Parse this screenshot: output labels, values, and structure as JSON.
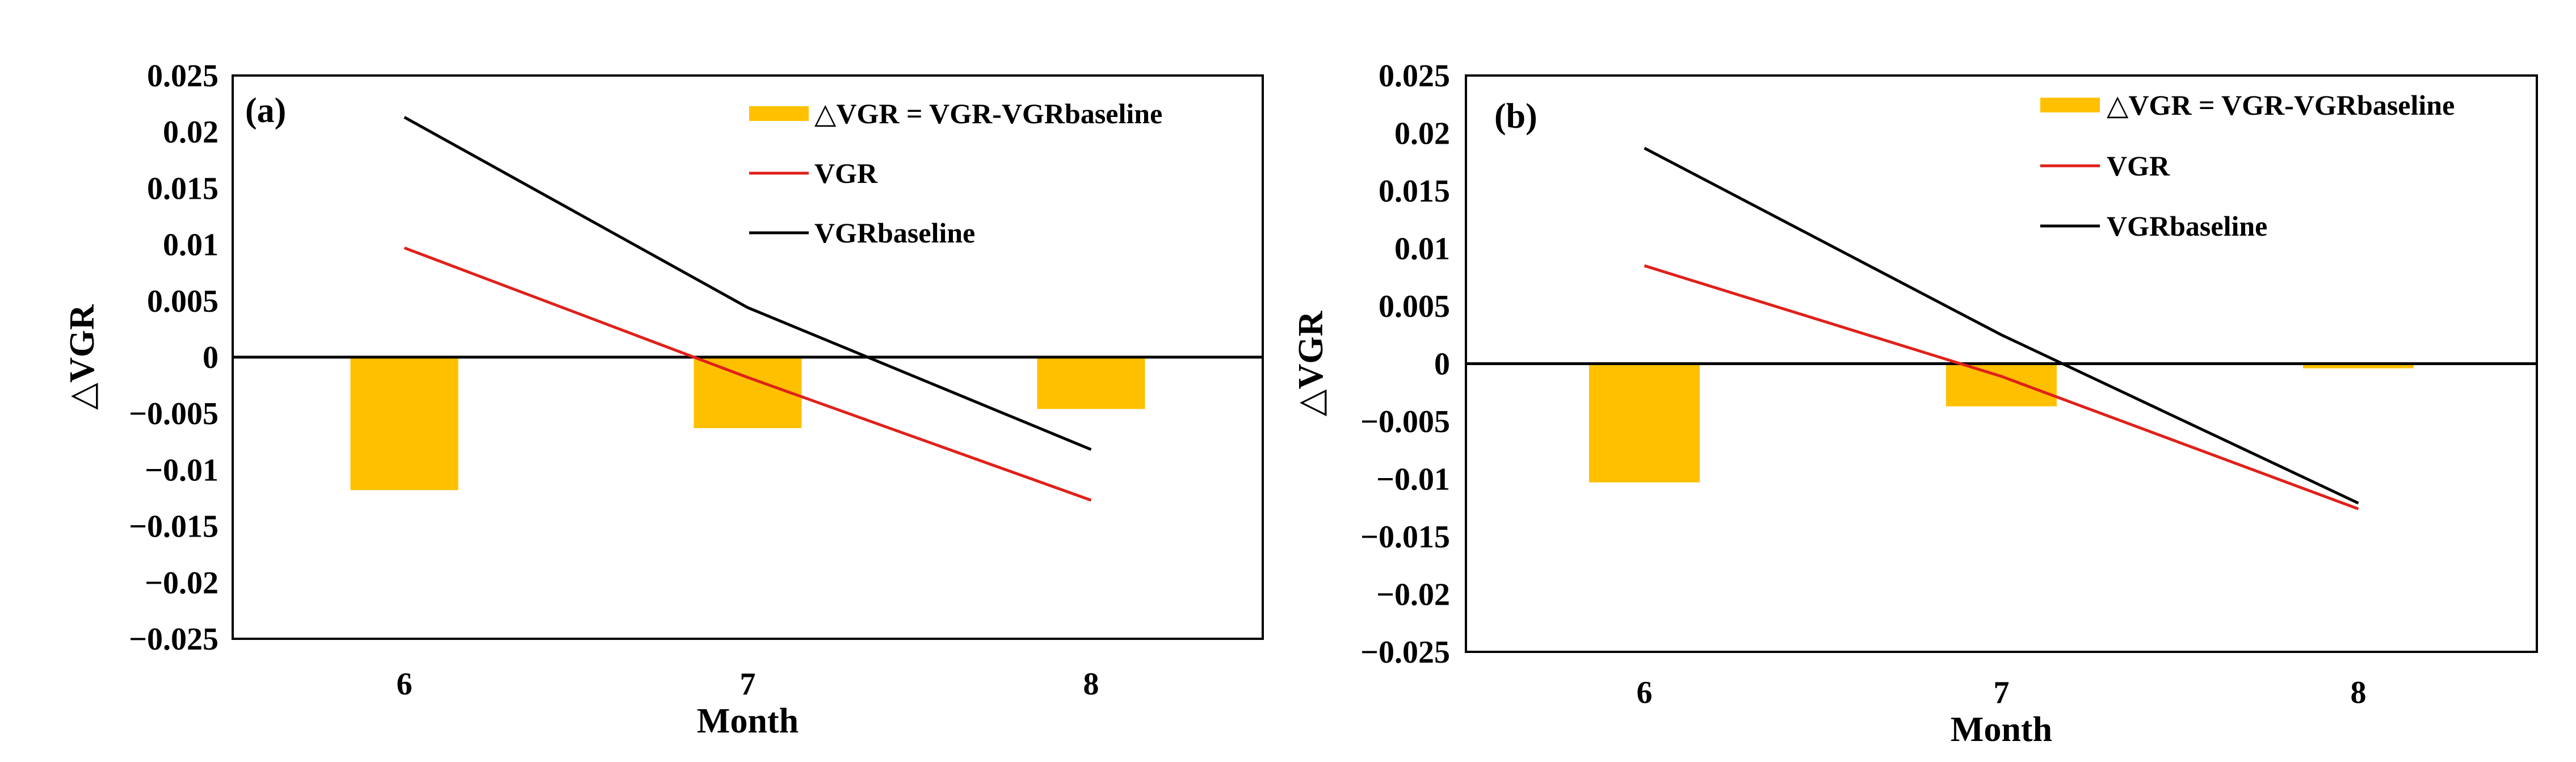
{
  "chart_data": [
    {
      "type": "bar+line",
      "panel_label": "(a)",
      "categories": [
        "6",
        "7",
        "8"
      ],
      "xlabel": "Month",
      "ylabel": "△VGR",
      "ylim": [
        -0.025,
        0.025
      ],
      "yticks": [
        0.025,
        0.02,
        0.015,
        0.01,
        0.005,
        0,
        -0.005,
        -0.01,
        -0.015,
        -0.02,
        -0.025
      ],
      "ytick_labels": [
        "0.025",
        "0.02",
        "0.015",
        "0.01",
        "0.005",
        "0",
        "−0.005",
        "−0.01",
        "−0.015",
        "−0.02",
        "−0.025"
      ],
      "legend_position": "top-right",
      "series": [
        {
          "name": "△VGR = VGR-VGRbaseline",
          "kind": "bar",
          "color": "#ffc000",
          "values": [
            -0.0118,
            -0.0063,
            -0.0046
          ]
        },
        {
          "name": "VGR",
          "kind": "line",
          "color": "#e0201a",
          "values": [
            0.0097,
            -0.0018,
            -0.0127
          ]
        },
        {
          "name": "VGRbaseline",
          "kind": "line",
          "color": "#000000",
          "values": [
            0.0213,
            0.0044,
            -0.0082
          ]
        }
      ]
    },
    {
      "type": "bar+line",
      "panel_label": "(b)",
      "categories": [
        "6",
        "7",
        "8"
      ],
      "xlabel": "Month",
      "ylabel": "△VGR",
      "ylim": [
        -0.025,
        0.025
      ],
      "yticks": [
        0.025,
        0.02,
        0.015,
        0.01,
        0.005,
        0,
        -0.005,
        -0.01,
        -0.015,
        -0.02,
        -0.025
      ],
      "ytick_labels": [
        "0.025",
        "0.02",
        "0.015",
        "0.01",
        "0.005",
        "0",
        "−0.005",
        "−0.01",
        "−0.015",
        "−0.02",
        "−0.025"
      ],
      "legend_position": "top-right",
      "series": [
        {
          "name": "△VGR = VGR-VGRbaseline",
          "kind": "bar",
          "color": "#ffc000",
          "values": [
            -0.0103,
            -0.0037,
            -0.0004
          ]
        },
        {
          "name": "VGR",
          "kind": "line",
          "color": "#e0201a",
          "values": [
            0.0085,
            -0.0011,
            -0.0126
          ]
        },
        {
          "name": "VGRbaseline",
          "kind": "line",
          "color": "#000000",
          "values": [
            0.0187,
            0.0025,
            -0.0121
          ]
        }
      ]
    }
  ]
}
